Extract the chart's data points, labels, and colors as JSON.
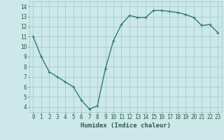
{
  "x": [
    0,
    1,
    2,
    3,
    4,
    5,
    6,
    7,
    8,
    9,
    10,
    11,
    12,
    13,
    14,
    15,
    16,
    17,
    18,
    19,
    20,
    21,
    22,
    23
  ],
  "y": [
    11,
    9,
    7.5,
    7,
    6.5,
    6,
    4.7,
    3.8,
    4.1,
    7.8,
    10.6,
    12.2,
    13.1,
    12.9,
    12.9,
    13.6,
    13.6,
    13.5,
    13.4,
    13.2,
    12.9,
    12.1,
    12.2,
    11.4
  ],
  "line_color": "#2e7d6e",
  "marker": "+",
  "marker_size": 3,
  "bg_color": "#cce8e8",
  "grid_color": "#aacccc",
  "xlabel": "Humidex (Indice chaleur)",
  "xlim": [
    -0.5,
    23.5
  ],
  "ylim": [
    3.5,
    14.5
  ],
  "yticks": [
    4,
    5,
    6,
    7,
    8,
    9,
    10,
    11,
    12,
    13,
    14
  ],
  "xticks": [
    0,
    1,
    2,
    3,
    4,
    5,
    6,
    7,
    8,
    9,
    10,
    11,
    12,
    13,
    14,
    15,
    16,
    17,
    18,
    19,
    20,
    21,
    22,
    23
  ],
  "xtick_labels": [
    "0",
    "1",
    "2",
    "3",
    "4",
    "5",
    "6",
    "7",
    "8",
    "9",
    "10",
    "11",
    "12",
    "13",
    "14",
    "15",
    "16",
    "17",
    "18",
    "19",
    "20",
    "21",
    "22",
    "23"
  ],
  "font_color": "#2e5a4e",
  "line_width": 1.0,
  "label_fontsize": 6.5,
  "tick_fontsize": 5.5
}
